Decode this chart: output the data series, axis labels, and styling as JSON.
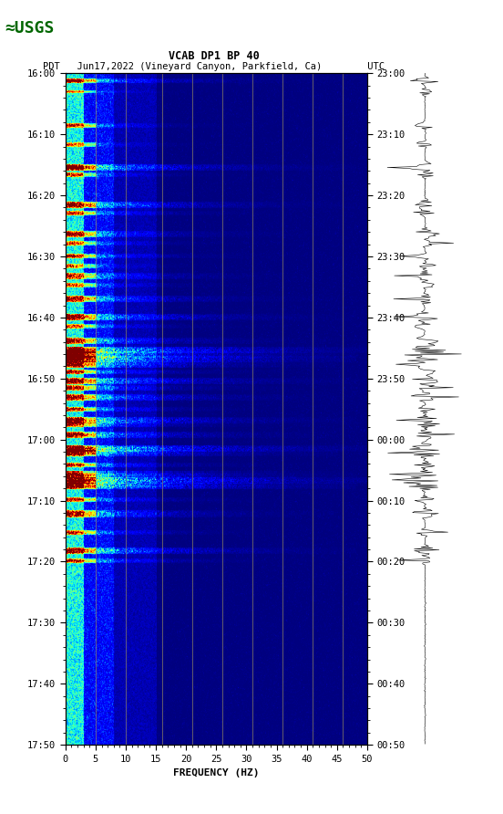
{
  "title_line1": "VCAB DP1 BP 40",
  "title_line2": "PDT   Jun17,2022 (Vineyard Canyon, Parkfield, Ca)        UTC",
  "xlabel": "FREQUENCY (HZ)",
  "freq_min": 0,
  "freq_max": 50,
  "freq_ticks": [
    0,
    5,
    10,
    15,
    20,
    25,
    30,
    35,
    40,
    45,
    50
  ],
  "time_labels_left": [
    "16:00",
    "16:10",
    "16:20",
    "16:30",
    "16:40",
    "16:50",
    "17:00",
    "17:10",
    "17:20",
    "17:30",
    "17:40",
    "17:50"
  ],
  "time_labels_right": [
    "23:00",
    "23:10",
    "23:20",
    "23:30",
    "23:40",
    "23:50",
    "00:00",
    "00:10",
    "00:20",
    "00:30",
    "00:40",
    "00:50"
  ],
  "n_time_steps": 720,
  "n_freq_steps": 500,
  "background": "#ffffff",
  "colormap": "jet",
  "vertical_lines_freq": [
    5,
    10,
    16,
    21,
    26,
    31,
    36,
    41,
    46
  ],
  "vline_color": "#9090508F",
  "noise_seed": 42,
  "seismic_seed": 77,
  "fig_width": 5.52,
  "fig_height": 8.92,
  "dpi": 100
}
